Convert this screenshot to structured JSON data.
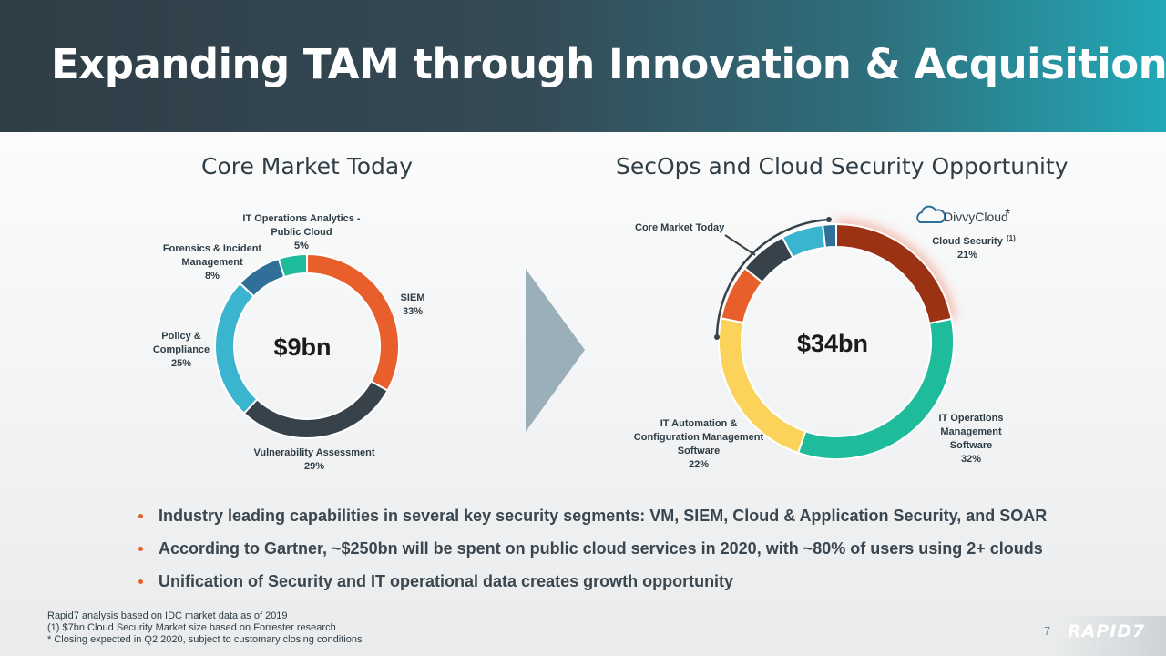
{
  "title": "Expanding TAM through Innovation & Acquisition",
  "colors": {
    "orange": "#e85f2b",
    "dark": "#37424a",
    "cyan": "#3bb4cf",
    "blue": "#2f6f98",
    "teal": "#1fbc9c",
    "brown": "#9b3214",
    "green": "#1fbc9c",
    "yellow": "#fbd35b",
    "arrow": "#9aafba"
  },
  "chart_data": [
    {
      "type": "pie",
      "title": "Core Market Today",
      "center_label": "$9bn",
      "slices": [
        {
          "label": "SIEM",
          "value_label": "33%",
          "value": 33,
          "color": "#e85f2b"
        },
        {
          "label": "Vulnerability Assessment",
          "value_label": "29%",
          "value": 29,
          "color": "#37424a"
        },
        {
          "label": "Policy & Compliance",
          "value_label": "25%",
          "value": 25,
          "color": "#3bb4cf"
        },
        {
          "label": "Forensics & Incident Management",
          "value_label": "8%",
          "value": 8,
          "color": "#2f6f98"
        },
        {
          "label": "IT Operations Analytics - Public Cloud",
          "value_label": "5%",
          "value": 5,
          "color": "#1fbc9c"
        }
      ]
    },
    {
      "type": "pie",
      "title": "SecOps and Cloud Security Opportunity",
      "center_label": "$34bn",
      "slices": [
        {
          "label": "Cloud Security",
          "superscript": "(1)",
          "value_label": "21%",
          "value": 21,
          "color": "#9b3214"
        },
        {
          "label": "IT Operations Management Software",
          "value_label": "32%",
          "value": 32,
          "color": "#1fbc9c"
        },
        {
          "label": "IT Automation & Configuration Management Software",
          "value_label": "22%",
          "value": 22,
          "color": "#fbd35b"
        },
        {
          "label": "",
          "value": 7.26,
          "color": "#e85f2b"
        },
        {
          "label": "",
          "value": 6.38,
          "color": "#37424a"
        },
        {
          "label": "",
          "value": 5.5,
          "color": "#3bb4cf"
        },
        {
          "label": "",
          "value": 1.76,
          "color": "#2f6f98"
        }
      ],
      "bracket_label": "Core Market Today",
      "logo": {
        "name": "DivvyCloud",
        "mark": "*"
      }
    }
  ],
  "bullets": [
    "Industry leading capabilities in several key security segments: VM, SIEM, Cloud & Application Security, and SOAR",
    "According to Gartner, ~$250bn will be spent on public cloud services in 2020, with ~80% of users using 2+ clouds",
    "Unification of Security and IT operational data creates growth opportunity"
  ],
  "footnotes": [
    "Rapid7 analysis based on IDC market data as of 2019",
    "(1) $7bn Cloud Security Market size based on Forrester research",
    "* Closing expected in Q2 2020, subject to customary closing conditions"
  ],
  "page_number": "7",
  "brand": "RAPID7"
}
